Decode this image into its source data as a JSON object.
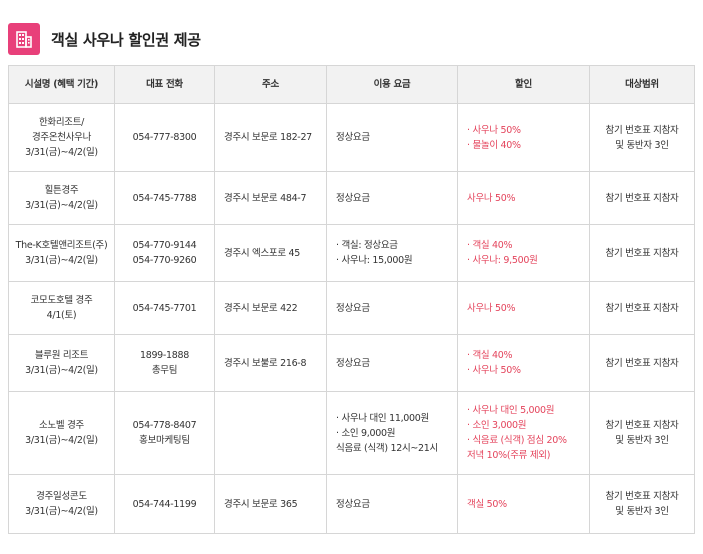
{
  "title": "객실 사우나 할인권 제공",
  "icon": "building-icon",
  "accent_color": "#e8407a",
  "discount_color": "#e4445c",
  "table": {
    "headers": [
      "시설명 (혜택 기간)",
      "대표 전화",
      "주소",
      "이용 요금",
      "할인",
      "대상범위"
    ],
    "rows": [
      {
        "name": [
          "한화리조트/",
          "경주온천사우나",
          "3/31(금)~4/2(일)"
        ],
        "phone": [
          "054-777-8300"
        ],
        "address": [
          "경주시 보문로 182-27"
        ],
        "fee": [
          "정상요금"
        ],
        "discount": [
          "· 사우나 50%",
          "· 물놀이 40%"
        ],
        "scope": [
          "참기 번호표 지참자",
          "및 동반자 3인"
        ]
      },
      {
        "name": [
          "힐튼경주",
          "3/31(금)~4/2(일)"
        ],
        "phone": [
          "054-745-7788"
        ],
        "address": [
          "경주시 보문로 484-7"
        ],
        "fee": [
          "정상요금"
        ],
        "discount": [
          "사우나 50%"
        ],
        "scope": [
          "참기 번호표 지참자"
        ]
      },
      {
        "name": [
          "The-K호텔앤리조트(주)",
          "3/31(금)~4/2(일)"
        ],
        "phone": [
          "054-770-9144",
          "054-770-9260"
        ],
        "address": [
          "경주시 엑스포로 45"
        ],
        "fee": [
          "· 객실: 정상요금",
          "· 사우나: 15,000원"
        ],
        "discount": [
          "· 객실 40%",
          "· 사우나: 9,500원"
        ],
        "scope": [
          "참기 번호표 지참자"
        ]
      },
      {
        "name": [
          "코모도호텔 경주",
          "4/1(토)"
        ],
        "phone": [
          "054-745-7701"
        ],
        "address": [
          "경주시 보문로 422"
        ],
        "fee": [
          "정상요금"
        ],
        "discount": [
          "사우나 50%"
        ],
        "scope": [
          "참기 번호표 지참자"
        ]
      },
      {
        "name": [
          "블루원 리조트",
          "3/31(금)~4/2(일)"
        ],
        "phone": [
          "1899-1888",
          "총무팀"
        ],
        "address": [
          "경주시 보불로 216-8"
        ],
        "fee": [
          "정상요금"
        ],
        "discount": [
          "· 객실 40%",
          "· 사우나 50%"
        ],
        "scope": [
          "참기 번호표 지참자"
        ]
      },
      {
        "name": [
          "소노벨 경주",
          "3/31(금)~4/2(일)"
        ],
        "phone": [
          "054-778-8407",
          "홍보마케팅팀"
        ],
        "address": [],
        "fee": [
          "· 사우나 대인 11,000원",
          "· 소인 9,000원",
          "식음료 (식객) 12시~21시"
        ],
        "discount": [
          "· 사우나 대인 5,000원",
          "· 소인 3,000원",
          "· 식음료 (식객) 점심 20%",
          "저녁 10%(주류 제외)"
        ],
        "scope": [
          "참기 번호표 지참자",
          "및 동반자 3인"
        ]
      },
      {
        "name": [
          "경주일성콘도",
          "3/31(금)~4/2(일)"
        ],
        "phone": [
          "054-744-1199"
        ],
        "address": [
          "경주시 보문로 365"
        ],
        "fee": [
          "정상요금"
        ],
        "discount": [
          "객실 50%"
        ],
        "scope": [
          "참기 번호표 지참자",
          "및 동반자 3인"
        ]
      }
    ]
  }
}
